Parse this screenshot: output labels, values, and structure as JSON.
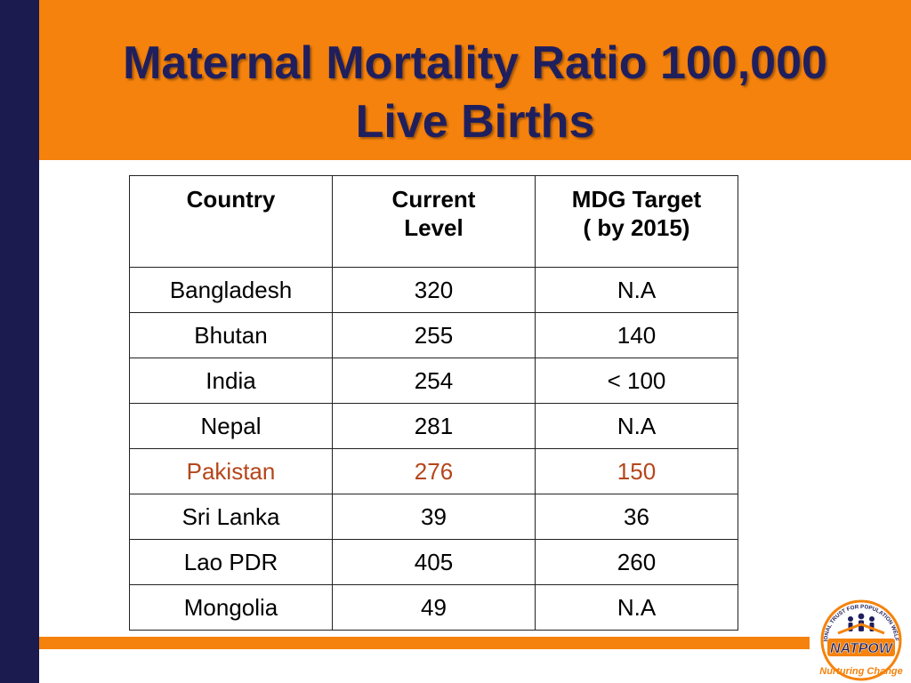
{
  "slide": {
    "title_line1": "Maternal Mortality Ratio 100,000",
    "title_line2": "Live Births"
  },
  "table": {
    "headers": {
      "country": "Country",
      "current_line1": "Current",
      "current_line2": "Level",
      "target_line1": "MDG Target",
      "target_line2": "( by 2015)"
    },
    "rows": [
      {
        "country": "Bangladesh",
        "current": "320",
        "target": "N.A"
      },
      {
        "country": "Bhutan",
        "current": "255",
        "target": "140"
      },
      {
        "country": "India",
        "current": "254",
        "target": "< 100"
      },
      {
        "country": "Nepal",
        "current": "281",
        "target": "N.A"
      },
      {
        "country": "Pakistan",
        "current": "276",
        "target": "150"
      },
      {
        "country": "Sri Lanka",
        "current": "39",
        "target": "36"
      },
      {
        "country": "Lao PDR",
        "current": "405",
        "target": "260"
      },
      {
        "country": "Mongolia",
        "current": "49",
        "target": "N.A"
      }
    ],
    "highlight_row": "Pakistan"
  },
  "logo": {
    "name": "NATPOW",
    "arc_text": "NATIONAL TRUST FOR POPULATION WELFARE",
    "tagline": "Nurturing Change"
  },
  "colors": {
    "header": "#f5820c",
    "left_bar": "#1b1b4f",
    "title": "#1f1f5e",
    "highlight": "#b5461a"
  }
}
